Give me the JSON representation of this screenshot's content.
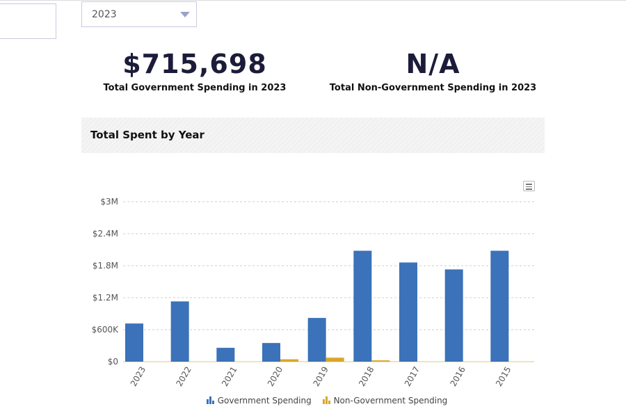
{
  "filter": {
    "selected_year": "2023"
  },
  "stats": {
    "government": {
      "value": "$715,698",
      "caption": "Total Government Spending in 2023"
    },
    "non_government": {
      "value": "N/A",
      "caption": "Total Non-Government Spending in 2023"
    }
  },
  "section": {
    "title": "Total Spent by Year"
  },
  "colors": {
    "government": "#3b72b9",
    "non_government": "#d9a62b",
    "grid": "#cccccc",
    "axis_text": "#555555"
  },
  "icons": {
    "menu": "hamburger-menu-icon",
    "legend": "bar-chart-icon",
    "dropdown": "chevron-down-icon"
  },
  "chart_data": {
    "type": "bar",
    "categories": [
      "2023",
      "2022",
      "2021",
      "2020",
      "2019",
      "2018",
      "2017",
      "2016",
      "2015"
    ],
    "series": [
      {
        "name": "Government Spending",
        "values": [
          715698,
          1130000,
          260000,
          350000,
          820000,
          2080000,
          1860000,
          1730000,
          2080000
        ]
      },
      {
        "name": "Non-Government Spending",
        "values": [
          0,
          0,
          0,
          45000,
          75000,
          25000,
          0,
          0,
          0
        ]
      }
    ],
    "ylim": [
      0,
      3000000
    ],
    "y_ticks": [
      {
        "value": 0,
        "label": "$0"
      },
      {
        "value": 600000,
        "label": "$600K"
      },
      {
        "value": 1200000,
        "label": "$1.2M"
      },
      {
        "value": 1800000,
        "label": "$1.8M"
      },
      {
        "value": 2400000,
        "label": "$2.4M"
      },
      {
        "value": 3000000,
        "label": "$3M"
      }
    ],
    "grid": true,
    "legend_position": "bottom-center"
  }
}
